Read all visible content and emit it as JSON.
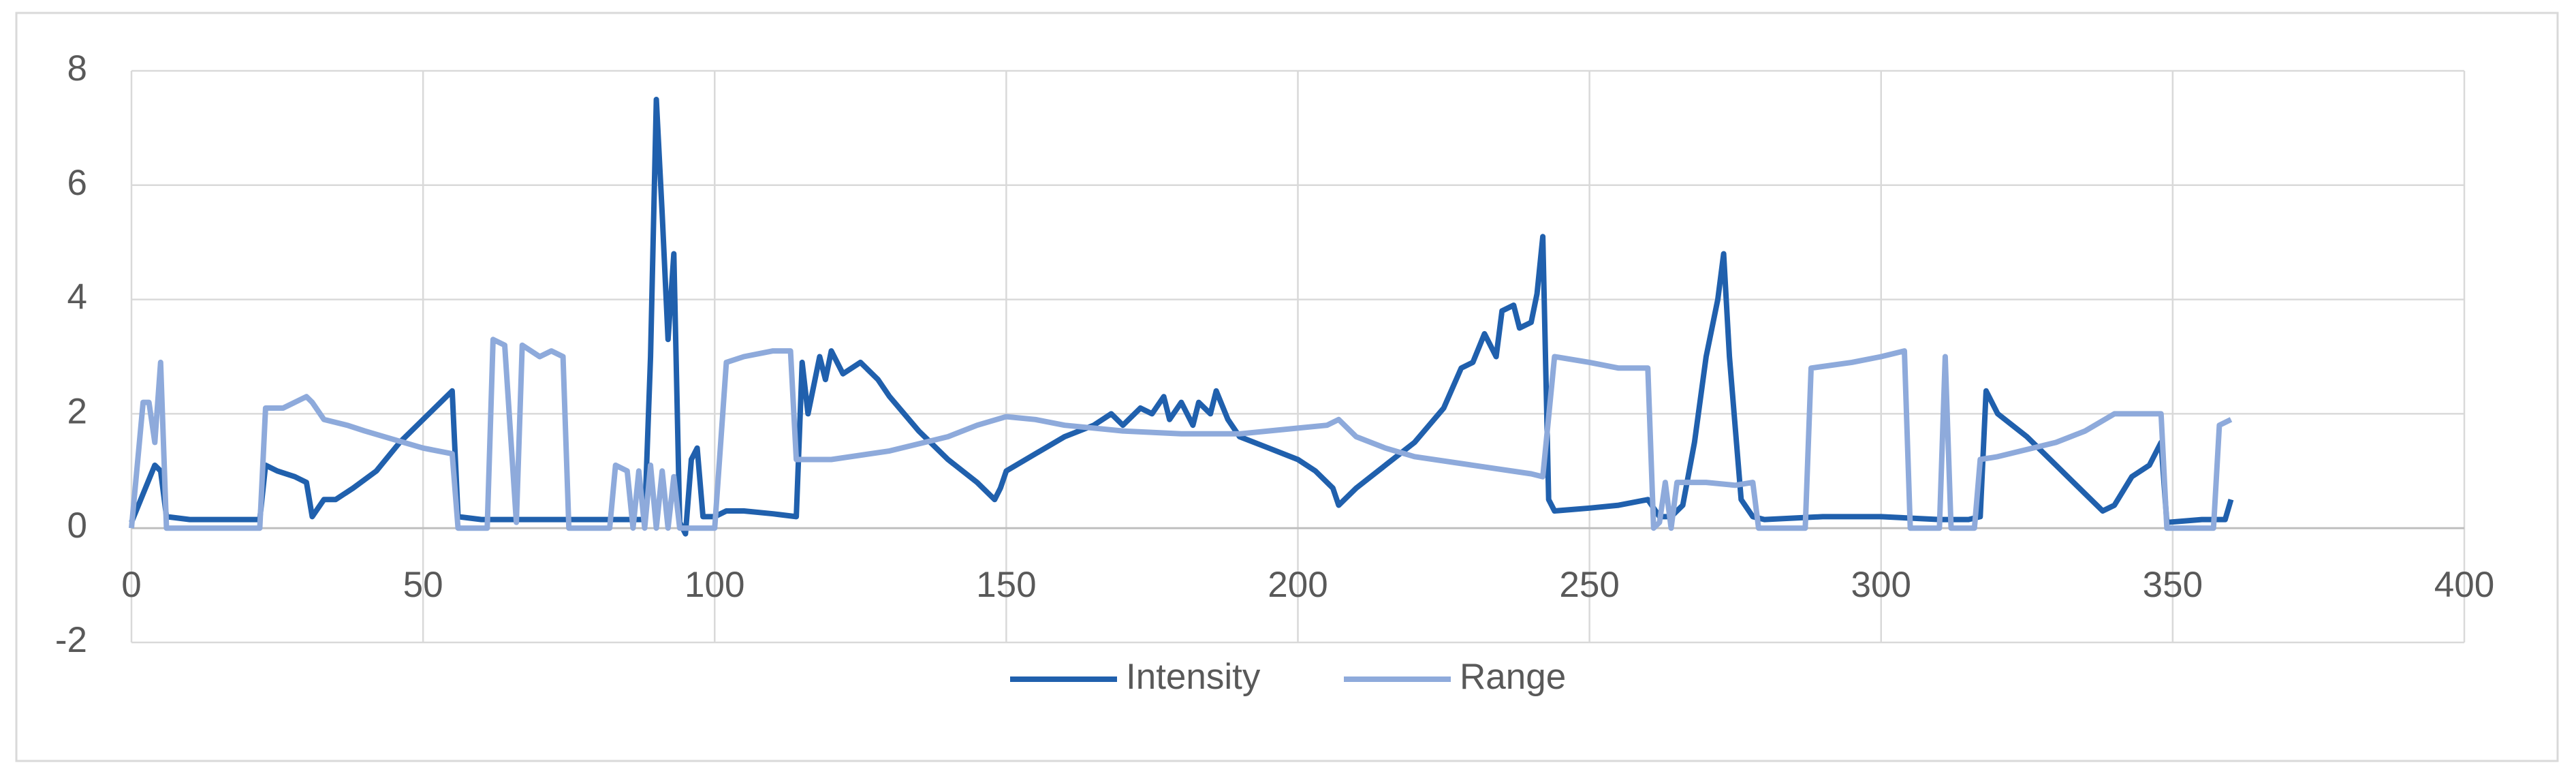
{
  "chart_data": {
    "type": "line",
    "xlim": [
      0,
      400
    ],
    "xticks": [
      0,
      50,
      100,
      150,
      200,
      250,
      300,
      350,
      400
    ],
    "ylim": [
      -2,
      8
    ],
    "yticks": [
      -2,
      0,
      2,
      4,
      6,
      8
    ],
    "grid": true,
    "legend": "bottom",
    "series": [
      {
        "name": "Intensity",
        "color": "#2060ad",
        "x": [
          0,
          2,
          4,
          5,
          6,
          10,
          15,
          20,
          22,
          23,
          25,
          28,
          30,
          31,
          33,
          35,
          38,
          42,
          46,
          50,
          53,
          55,
          56,
          60,
          65,
          70,
          75,
          80,
          85,
          88,
          89,
          90,
          91,
          92,
          93,
          94,
          95,
          96,
          97,
          98,
          100,
          102,
          105,
          110,
          114,
          115,
          116,
          118,
          119,
          120,
          122,
          125,
          128,
          130,
          135,
          140,
          145,
          148,
          149,
          150,
          155,
          160,
          165,
          168,
          170,
          173,
          175,
          177,
          178,
          180,
          182,
          183,
          185,
          186,
          188,
          190,
          195,
          200,
          203,
          206,
          207,
          210,
          215,
          220,
          225,
          228,
          230,
          232,
          234,
          235,
          237,
          238,
          240,
          241,
          242,
          243,
          244,
          250,
          255,
          260,
          262,
          264,
          266,
          268,
          270,
          272,
          273,
          274,
          276,
          278,
          280,
          290,
          300,
          310,
          315,
          317,
          318,
          320,
          325,
          330,
          335,
          338,
          340,
          343,
          346,
          348,
          349,
          355,
          359,
          360
        ],
        "values": [
          0.1,
          0.6,
          1.1,
          1.0,
          0.2,
          0.15,
          0.15,
          0.15,
          0.15,
          1.1,
          1.0,
          0.9,
          0.8,
          0.2,
          0.5,
          0.5,
          0.7,
          1.0,
          1.5,
          1.9,
          2.2,
          2.4,
          0.2,
          0.15,
          0.15,
          0.15,
          0.15,
          0.15,
          0.15,
          0.15,
          3.0,
          7.5,
          5.5,
          3.3,
          4.8,
          0.1,
          -0.1,
          1.2,
          1.4,
          0.2,
          0.2,
          0.3,
          0.3,
          0.25,
          0.2,
          2.9,
          2.0,
          3.0,
          2.6,
          3.1,
          2.7,
          2.9,
          2.6,
          2.3,
          1.7,
          1.2,
          0.8,
          0.5,
          0.7,
          1.0,
          1.3,
          1.6,
          1.8,
          2.0,
          1.8,
          2.1,
          2.0,
          2.3,
          1.9,
          2.2,
          1.8,
          2.2,
          2.0,
          2.4,
          1.9,
          1.6,
          1.4,
          1.2,
          1.0,
          0.7,
          0.4,
          0.7,
          1.1,
          1.5,
          2.1,
          2.8,
          2.9,
          3.4,
          3.0,
          3.8,
          3.9,
          3.5,
          3.6,
          4.1,
          5.1,
          0.5,
          0.3,
          0.35,
          0.4,
          0.5,
          0.2,
          0.2,
          0.4,
          1.5,
          3.0,
          4.0,
          4.8,
          3.0,
          0.5,
          0.2,
          0.15,
          0.2,
          0.2,
          0.15,
          0.15,
          0.2,
          2.4,
          2.0,
          1.6,
          1.1,
          0.6,
          0.3,
          0.4,
          0.9,
          1.1,
          1.5,
          0.1,
          0.15,
          0.15,
          0.5
        ]
      },
      {
        "name": "Range",
        "color": "#8eaadb",
        "x": [
          0,
          2,
          3,
          4,
          5,
          6,
          10,
          15,
          22,
          23,
          26,
          30,
          31,
          33,
          37,
          40,
          45,
          50,
          55,
          56,
          60,
          61,
          62,
          64,
          66,
          67,
          70,
          72,
          74,
          75,
          80,
          82,
          83,
          85,
          86,
          87,
          88,
          89,
          90,
          91,
          92,
          93,
          94,
          100,
          102,
          105,
          110,
          113,
          114,
          120,
          130,
          140,
          145,
          150,
          155,
          160,
          170,
          180,
          190,
          200,
          205,
          207,
          210,
          215,
          220,
          230,
          240,
          242,
          244,
          250,
          255,
          260,
          261,
          262,
          263,
          264,
          265,
          270,
          275,
          278,
          279,
          285,
          287,
          288,
          295,
          300,
          304,
          305,
          310,
          311,
          312,
          316,
          317,
          320,
          330,
          335,
          340,
          345,
          348,
          349,
          355,
          357,
          358,
          360
        ],
        "values": [
          0.0,
          2.2,
          2.2,
          1.5,
          2.9,
          0.0,
          0.0,
          0.0,
          0.0,
          2.1,
          2.1,
          2.3,
          2.2,
          1.9,
          1.8,
          1.7,
          1.55,
          1.4,
          1.3,
          0.0,
          0.0,
          0.0,
          3.3,
          3.2,
          0.1,
          3.2,
          3.0,
          3.1,
          3.0,
          0.0,
          0.0,
          0.0,
          1.1,
          1.0,
          0.0,
          1.0,
          0.0,
          1.1,
          0.0,
          1.0,
          0.0,
          0.9,
          0.0,
          0.0,
          2.9,
          3.0,
          3.1,
          3.1,
          1.2,
          1.2,
          1.35,
          1.6,
          1.8,
          1.95,
          1.9,
          1.8,
          1.7,
          1.65,
          1.65,
          1.75,
          1.8,
          1.9,
          1.6,
          1.4,
          1.25,
          1.1,
          0.95,
          0.9,
          3.0,
          2.9,
          2.8,
          2.8,
          0.0,
          0.1,
          0.8,
          0.0,
          0.8,
          0.8,
          0.75,
          0.8,
          0.0,
          0.0,
          0.0,
          2.8,
          2.9,
          3.0,
          3.1,
          0.0,
          0.0,
          3.0,
          0.0,
          0.0,
          1.2,
          1.25,
          1.5,
          1.7,
          2.0,
          2.0,
          2.0,
          0.0,
          0.0,
          0.0,
          1.8,
          1.9
        ]
      }
    ]
  }
}
